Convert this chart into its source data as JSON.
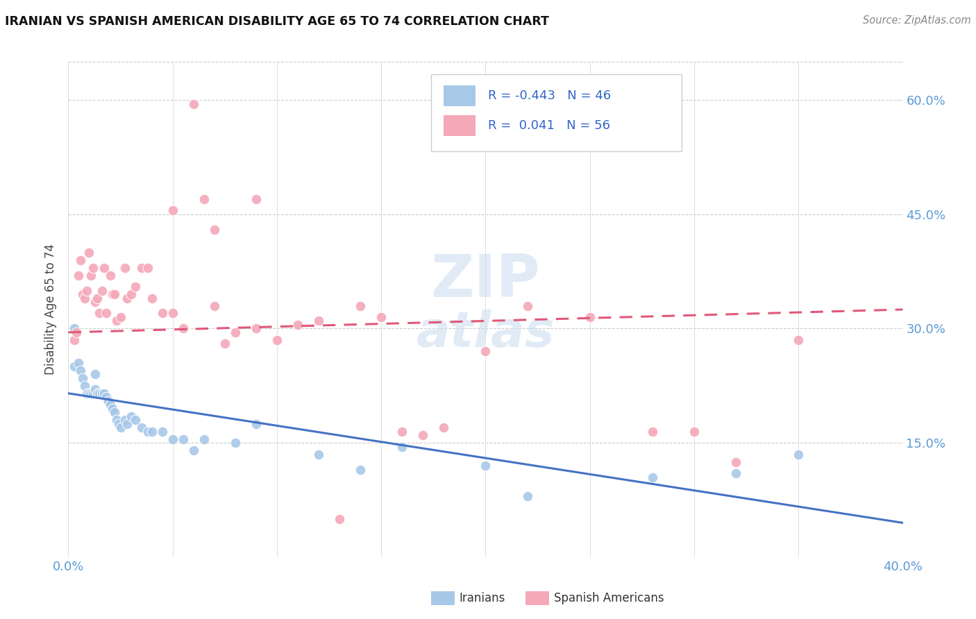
{
  "title": "IRANIAN VS SPANISH AMERICAN DISABILITY AGE 65 TO 74 CORRELATION CHART",
  "source": "Source: ZipAtlas.com",
  "ylabel": "Disability Age 65 to 74",
  "ytick_labels": [
    "15.0%",
    "30.0%",
    "45.0%",
    "60.0%"
  ],
  "ytick_values": [
    0.15,
    0.3,
    0.45,
    0.6
  ],
  "xlim": [
    0.0,
    0.4
  ],
  "ylim": [
    0.0,
    0.65
  ],
  "legend_iranians": "Iranians",
  "legend_spanish": "Spanish Americans",
  "R_iranians": "-0.443",
  "N_iranians": "46",
  "R_spanish": "0.041",
  "N_spanish": "56",
  "color_iranian": "#a8c8e8",
  "color_spanish": "#f4a8b8",
  "color_iranian_line": "#4472c4",
  "color_spanish_line": "#e05878",
  "iranian_line_start_y": 0.215,
  "iranian_line_end_y": 0.045,
  "spanish_line_start_y": 0.295,
  "spanish_line_end_y": 0.325,
  "iranian_x": [
    0.003,
    0.005,
    0.006,
    0.007,
    0.008,
    0.009,
    0.01,
    0.011,
    0.012,
    0.013,
    0.013,
    0.014,
    0.015,
    0.016,
    0.017,
    0.018,
    0.019,
    0.02,
    0.021,
    0.022,
    0.023,
    0.024,
    0.025,
    0.027,
    0.028,
    0.03,
    0.032,
    0.035,
    0.038,
    0.04,
    0.045,
    0.05,
    0.055,
    0.06,
    0.065,
    0.08,
    0.09,
    0.12,
    0.14,
    0.16,
    0.2,
    0.22,
    0.28,
    0.32,
    0.35,
    0.003
  ],
  "iranian_y": [
    0.25,
    0.255,
    0.245,
    0.235,
    0.225,
    0.215,
    0.215,
    0.215,
    0.215,
    0.24,
    0.22,
    0.215,
    0.215,
    0.215,
    0.215,
    0.21,
    0.205,
    0.2,
    0.195,
    0.19,
    0.18,
    0.175,
    0.17,
    0.18,
    0.175,
    0.185,
    0.18,
    0.17,
    0.165,
    0.165,
    0.165,
    0.155,
    0.155,
    0.14,
    0.155,
    0.15,
    0.175,
    0.135,
    0.115,
    0.145,
    0.12,
    0.08,
    0.105,
    0.11,
    0.135,
    0.3
  ],
  "spanish_x": [
    0.003,
    0.004,
    0.005,
    0.006,
    0.007,
    0.008,
    0.009,
    0.01,
    0.011,
    0.012,
    0.013,
    0.014,
    0.015,
    0.016,
    0.017,
    0.018,
    0.02,
    0.021,
    0.022,
    0.023,
    0.025,
    0.027,
    0.028,
    0.03,
    0.032,
    0.035,
    0.038,
    0.04,
    0.045,
    0.05,
    0.055,
    0.06,
    0.065,
    0.07,
    0.075,
    0.08,
    0.09,
    0.1,
    0.11,
    0.12,
    0.13,
    0.14,
    0.15,
    0.16,
    0.17,
    0.18,
    0.2,
    0.22,
    0.25,
    0.28,
    0.3,
    0.32,
    0.35,
    0.05,
    0.07,
    0.09
  ],
  "spanish_y": [
    0.285,
    0.295,
    0.37,
    0.39,
    0.345,
    0.34,
    0.35,
    0.4,
    0.37,
    0.38,
    0.335,
    0.34,
    0.32,
    0.35,
    0.38,
    0.32,
    0.37,
    0.345,
    0.345,
    0.31,
    0.315,
    0.38,
    0.34,
    0.345,
    0.355,
    0.38,
    0.38,
    0.34,
    0.32,
    0.32,
    0.3,
    0.595,
    0.47,
    0.33,
    0.28,
    0.295,
    0.3,
    0.285,
    0.305,
    0.31,
    0.05,
    0.33,
    0.315,
    0.165,
    0.16,
    0.17,
    0.27,
    0.33,
    0.315,
    0.165,
    0.165,
    0.125,
    0.285,
    0.455,
    0.43,
    0.47
  ]
}
